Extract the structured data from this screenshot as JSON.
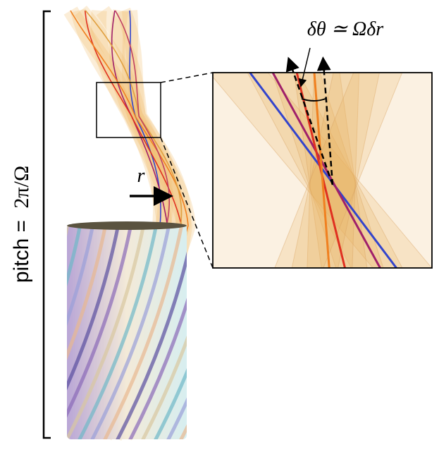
{
  "labels": {
    "pitch_word": "pitch =",
    "pitch_value": "2π/Ω",
    "radius": "r",
    "angle": "δθ ≃ Ωδr"
  }
}
